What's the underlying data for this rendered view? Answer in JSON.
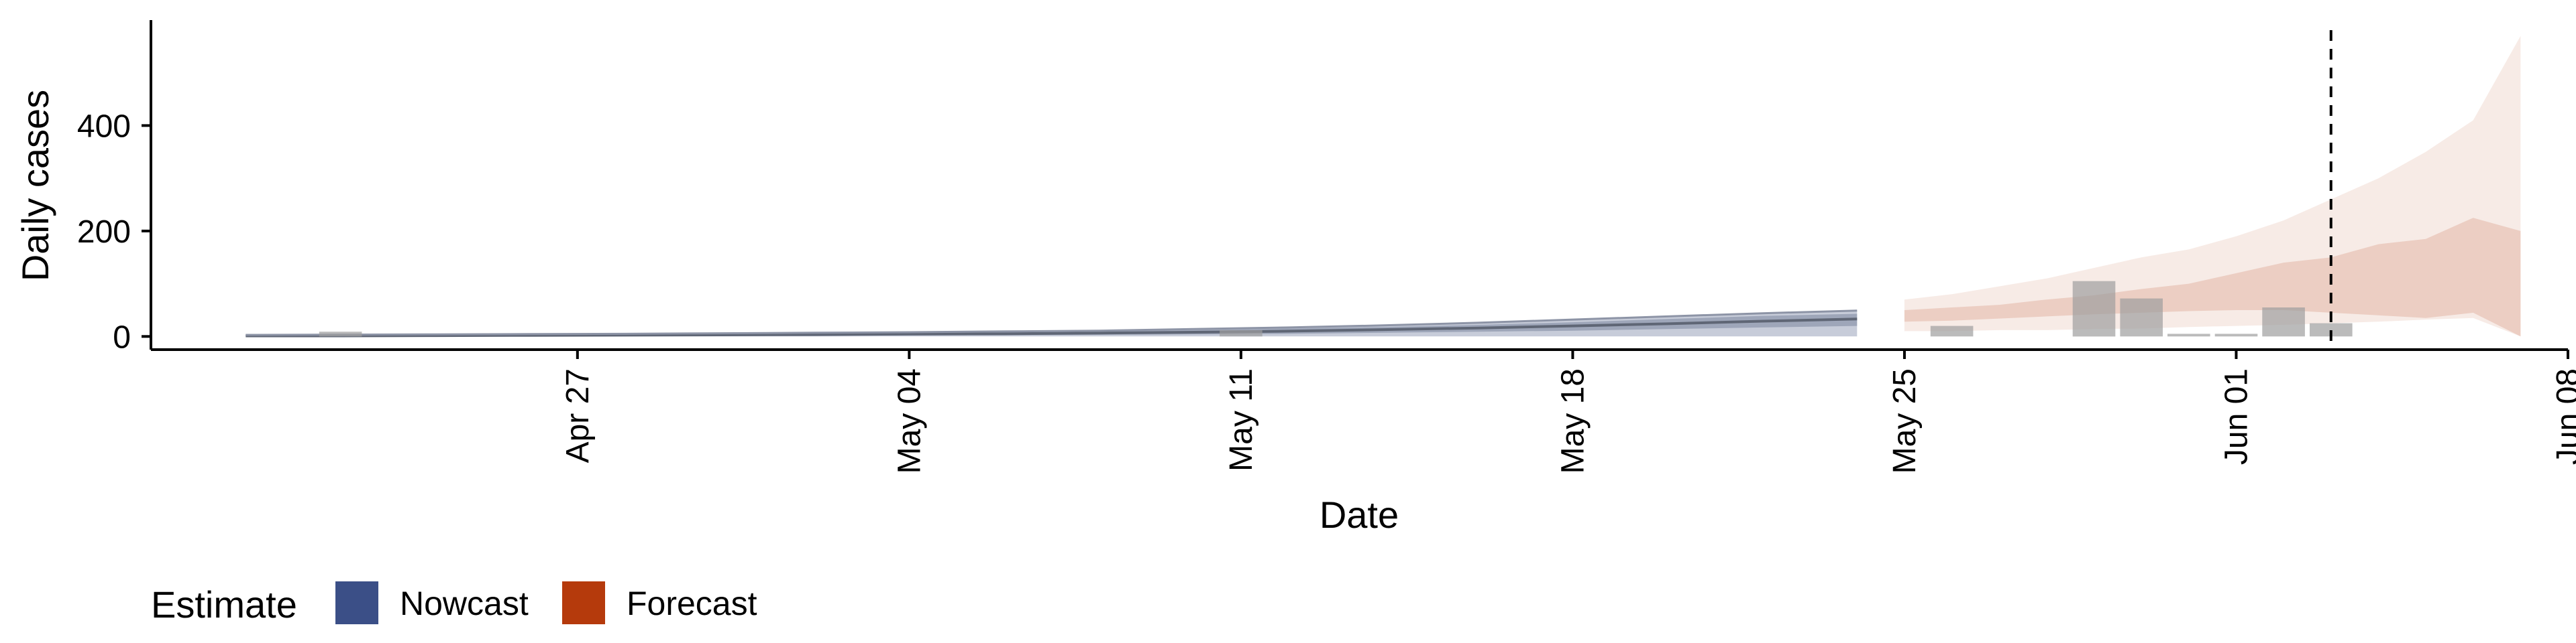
{
  "chart_data": {
    "type": "area",
    "xlabel": "Date",
    "ylabel": "Daily cases",
    "xlim": [
      "2020-04-18",
      "2020-06-08"
    ],
    "ylim": [
      -25,
      600
    ],
    "x_ticks": [
      "2020-04-27",
      "2020-05-04",
      "2020-05-11",
      "2020-05-18",
      "2020-05-25",
      "2020-06-01",
      "2020-06-08"
    ],
    "x_tick_labels": [
      "Apr 27",
      "May 04",
      "May 11",
      "May 18",
      "May 25",
      "Jun 01",
      "Jun 08"
    ],
    "y_ticks": [
      0,
      200,
      400
    ],
    "y_tick_labels": [
      "0",
      "200",
      "400"
    ],
    "grid": false,
    "vline_date": "2020-06-03",
    "legend": {
      "title": "Estimate",
      "position": "bottom-left",
      "items": [
        {
          "label": "Nowcast",
          "color": "#3b4f87"
        },
        {
          "label": "Forecast",
          "color": "#b53a0c"
        }
      ]
    },
    "observed_cases": {
      "dates": [
        "2020-04-20",
        "2020-04-21",
        "2020-04-22",
        "2020-04-23",
        "2020-04-24",
        "2020-04-25",
        "2020-04-26",
        "2020-04-27",
        "2020-04-28",
        "2020-04-29",
        "2020-04-30",
        "2020-05-01",
        "2020-05-02",
        "2020-05-03",
        "2020-05-04",
        "2020-05-05",
        "2020-05-06",
        "2020-05-07",
        "2020-05-08",
        "2020-05-09",
        "2020-05-10",
        "2020-05-11",
        "2020-05-12",
        "2020-05-13",
        "2020-05-14",
        "2020-05-15",
        "2020-05-16",
        "2020-05-17",
        "2020-05-18",
        "2020-05-19",
        "2020-05-20",
        "2020-05-21",
        "2020-05-22",
        "2020-05-23",
        "2020-05-24",
        "2020-05-25",
        "2020-05-26",
        "2020-05-27",
        "2020-05-28",
        "2020-05-29",
        "2020-05-30",
        "2020-05-31",
        "2020-06-01",
        "2020-06-02",
        "2020-06-03"
      ],
      "values": [
        0,
        0,
        9,
        0,
        0,
        0,
        0,
        0,
        0,
        0,
        0,
        0,
        0,
        0,
        0,
        0,
        0,
        0,
        0,
        0,
        0,
        12,
        0,
        0,
        0,
        0,
        0,
        0,
        0,
        0,
        0,
        0,
        0,
        0,
        0,
        0,
        0,
        0,
        0,
        0,
        0,
        0,
        0,
        0,
        0
      ]
    },
    "nowcast": {
      "dates": [
        "2020-04-20",
        "2020-04-22",
        "2020-04-24",
        "2020-04-26",
        "2020-04-28",
        "2020-04-30",
        "2020-05-02",
        "2020-05-04",
        "2020-05-06",
        "2020-05-08",
        "2020-05-10",
        "2020-05-12",
        "2020-05-14",
        "2020-05-16",
        "2020-05-18",
        "2020-05-20",
        "2020-05-22",
        "2020-05-24"
      ],
      "lower90": [
        0,
        0,
        0,
        0,
        0,
        0,
        0,
        0,
        0,
        0,
        0,
        0,
        0,
        0,
        0,
        0,
        0,
        0
      ],
      "lower50": [
        0,
        0,
        0.5,
        0.5,
        1,
        1,
        1.5,
        2,
        2.5,
        3,
        4,
        5,
        7,
        9,
        11,
        14,
        17,
        20
      ],
      "median": [
        1,
        1,
        1.5,
        2,
        2.5,
        3,
        3.5,
        4.5,
        5,
        6.5,
        8,
        10,
        13,
        16,
        20,
        24,
        29,
        33
      ],
      "upper50": [
        1.5,
        2,
        2.5,
        3,
        3.5,
        4.5,
        5.5,
        6.5,
        8,
        9.5,
        12,
        15,
        18,
        22,
        27,
        33,
        39,
        43
      ],
      "upper90": [
        3,
        3.5,
        4,
        4.5,
        5,
        6,
        7,
        8,
        9.5,
        11,
        14,
        17,
        21,
        26,
        32,
        38,
        44,
        49
      ]
    },
    "forecast": {
      "dates": [
        "2020-05-25",
        "2020-05-26",
        "2020-05-27",
        "2020-05-28",
        "2020-05-29",
        "2020-05-30",
        "2020-05-31",
        "2020-06-01",
        "2020-06-02",
        "2020-06-03",
        "2020-06-04",
        "2020-06-05",
        "2020-06-06",
        "2020-06-07"
      ],
      "lower90": [
        10,
        10,
        12,
        12,
        14,
        15,
        18,
        20,
        22,
        25,
        28,
        32,
        35,
        0
      ],
      "lower50": [
        28,
        30,
        34,
        38,
        42,
        45,
        48,
        50,
        50,
        45,
        40,
        35,
        45,
        0
      ],
      "upper50": [
        50,
        55,
        60,
        70,
        78,
        90,
        100,
        120,
        140,
        150,
        175,
        185,
        225,
        200
      ],
      "upper90": [
        70,
        80,
        95,
        110,
        130,
        150,
        165,
        190,
        220,
        260,
        300,
        350,
        410,
        570
      ]
    },
    "observed_recent": {
      "dates": [
        "2020-05-25",
        "2020-05-26",
        "2020-05-27",
        "2020-05-28",
        "2020-05-29",
        "2020-05-30",
        "2020-05-31",
        "2020-06-01",
        "2020-06-02",
        "2020-06-03"
      ],
      "values": [
        0,
        20,
        0,
        0,
        105,
        72,
        5,
        5,
        55,
        25
      ]
    }
  }
}
